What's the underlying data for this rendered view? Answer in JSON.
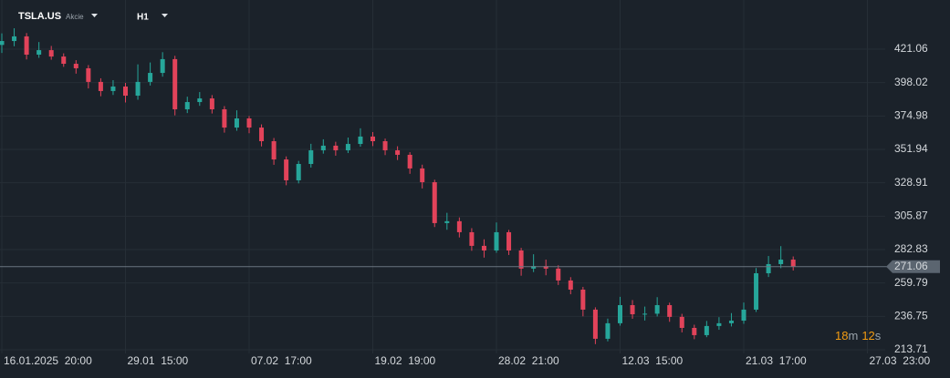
{
  "chart_data": {
    "type": "candlestick",
    "symbol": "TSLA.US",
    "asset_class": "Akcie",
    "timeframe": "H1",
    "up_color": "#26a69a",
    "down_color": "#e2435a",
    "grid": true,
    "ylim": [
      211.2,
      455.0
    ],
    "yticks": [
      213.71,
      236.75,
      259.79,
      282.83,
      305.87,
      328.91,
      351.94,
      374.98,
      398.02,
      421.06
    ],
    "last_price": 271.06,
    "categories": [
      "16.01.2025  20:00",
      null,
      null,
      null,
      null,
      null,
      null,
      null,
      null,
      null,
      "29.01  15:00",
      null,
      null,
      null,
      null,
      null,
      null,
      null,
      null,
      null,
      "07.02  17:00",
      null,
      null,
      null,
      null,
      null,
      null,
      null,
      null,
      null,
      "19.02  19:00",
      null,
      null,
      null,
      null,
      null,
      null,
      null,
      null,
      null,
      "28.02  21:00",
      null,
      null,
      null,
      null,
      null,
      null,
      null,
      null,
      null,
      "12.03  15:00",
      null,
      null,
      null,
      null,
      null,
      null,
      null,
      null,
      null,
      "21.03  17:00",
      null,
      null,
      null,
      null,
      null,
      null,
      null,
      null,
      null,
      "27.03  23:00",
      null
    ],
    "open": [
      424.0,
      426.7,
      429.9,
      417.3,
      420.4,
      416.0,
      411.0,
      407.9,
      398.5,
      392.2,
      395.3,
      389.0,
      398.5,
      404.7,
      414.2,
      379.6,
      384.6,
      387.1,
      379.6,
      367.0,
      373.3,
      367.0,
      357.6,
      345.0,
      330.6,
      341.9,
      351.3,
      354.5,
      351.3,
      355.7,
      360.8,
      357.6,
      351.3,
      348.2,
      338.8,
      329.3,
      301.1,
      302.4,
      294.8,
      285.4,
      282.2,
      294.8,
      282.2,
      269.7,
      271.5,
      269.7,
      261.5,
      255.2,
      241.4,
      221.3,
      232.0,
      244.5,
      238.2,
      238.6,
      244.5,
      236.4,
      228.8,
      223.8,
      230.1,
      232.0,
      233.8,
      241.4,
      266.5,
      272.8,
      275.9,
      null,
      null,
      null,
      null,
      null,
      null,
      null
    ],
    "high": [
      432.0,
      435.5,
      432.2,
      426.0,
      423.3,
      418.2,
      413.5,
      410.1,
      401.0,
      399.7,
      397.8,
      410.6,
      411.9,
      419.0,
      416.5,
      388.3,
      391.5,
      389.4,
      381.8,
      378.9,
      375.0,
      369.2,
      359.8,
      347.1,
      344.0,
      355.8,
      358.9,
      357.2,
      360.1,
      366.5,
      363.9,
      359.4,
      354.1,
      350.0,
      341.4,
      331.0,
      308.2,
      305.0,
      297.6,
      289.9,
      301.5,
      296.4,
      284.0,
      279.6,
      275.9,
      272.0,
      263.8,
      257.1,
      243.0,
      235.2,
      250.2,
      248.0,
      243.5,
      250.0,
      246.2,
      238.5,
      231.0,
      233.6,
      236.2,
      239.0,
      246.3,
      270.1,
      278.4,
      285.2,
      278.1,
      null,
      null,
      null,
      null,
      null,
      null,
      null
    ],
    "low": [
      418.5,
      423.1,
      414.0,
      415.1,
      413.8,
      408.9,
      404.2,
      394.0,
      388.6,
      389.5,
      384.3,
      386.2,
      396.0,
      402.1,
      375.4,
      377.0,
      382.0,
      376.7,
      363.5,
      364.8,
      363.1,
      354.0,
      341.3,
      327.2,
      328.5,
      339.4,
      349.0,
      347.6,
      349.4,
      353.8,
      354.2,
      348.0,
      344.6,
      335.1,
      325.0,
      298.4,
      296.5,
      291.2,
      282.0,
      277.3,
      280.6,
      279.1,
      264.8,
      267.3,
      265.1,
      258.4,
      252.0,
      236.8,
      217.6,
      219.5,
      230.4,
      235.1,
      233.9,
      236.7,
      233.0,
      225.7,
      221.0,
      222.4,
      227.5,
      229.8,
      231.6,
      239.8,
      263.9,
      270.0,
      268.4,
      null,
      null,
      null,
      null,
      null,
      null,
      null
    ],
    "close": [
      426.7,
      429.9,
      417.3,
      420.4,
      416.0,
      411.0,
      407.9,
      398.5,
      392.2,
      395.3,
      389.0,
      398.5,
      404.7,
      414.2,
      379.6,
      384.6,
      387.1,
      379.6,
      367.0,
      373.3,
      367.0,
      357.6,
      345.0,
      330.6,
      341.9,
      351.3,
      354.5,
      351.3,
      355.7,
      360.8,
      357.6,
      351.3,
      348.2,
      338.8,
      329.3,
      301.1,
      302.4,
      294.8,
      285.4,
      282.2,
      294.8,
      282.2,
      269.7,
      271.5,
      269.7,
      261.5,
      255.2,
      241.4,
      221.3,
      232.0,
      244.5,
      238.2,
      238.6,
      244.5,
      236.4,
      228.8,
      223.8,
      230.1,
      232.0,
      233.8,
      241.4,
      266.5,
      272.8,
      275.9,
      271.06,
      null,
      null,
      null,
      null,
      null,
      null,
      null
    ],
    "countdown": {
      "minutes": 18,
      "minutes_unit": "m",
      "seconds": 12,
      "seconds_unit": "s"
    }
  }
}
